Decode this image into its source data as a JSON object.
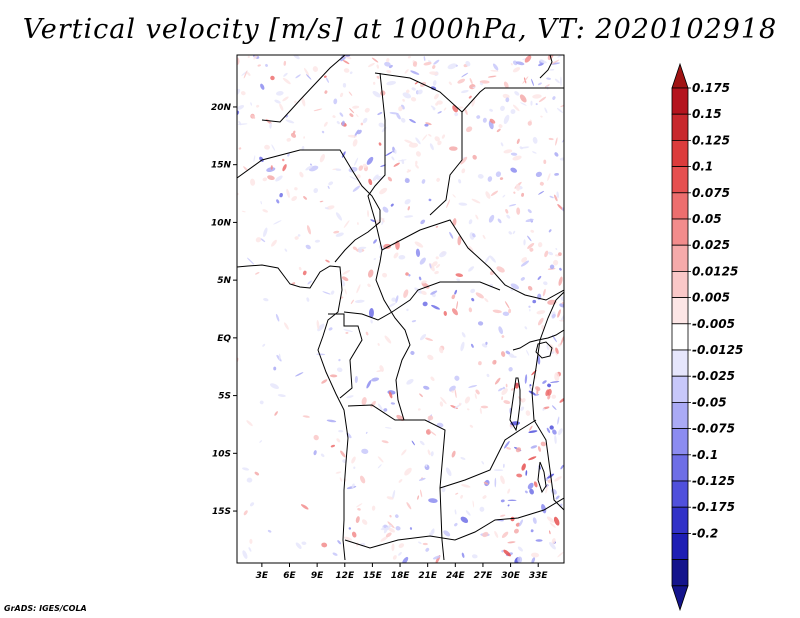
{
  "title": "Vertical velocity [m/s] at 1000hPa, VT: 2020102918",
  "credit": "GrADS: IGES/COLA",
  "map": {
    "lat_range": [
      -19.5,
      24.5
    ],
    "lon_range": [
      0.3,
      35.8
    ],
    "lat_ticks": [
      {
        "lat": 20,
        "label": "20N"
      },
      {
        "lat": 15,
        "label": "15N"
      },
      {
        "lat": 10,
        "label": "10N"
      },
      {
        "lat": 5,
        "label": "5N"
      },
      {
        "lat": 0,
        "label": "EQ"
      },
      {
        "lat": -5,
        "label": "5S"
      },
      {
        "lat": -10,
        "label": "10S"
      },
      {
        "lat": -15,
        "label": "15S"
      }
    ],
    "lon_ticks": [
      {
        "lon": 3,
        "label": "3E"
      },
      {
        "lon": 6,
        "label": "6E"
      },
      {
        "lon": 9,
        "label": "9E"
      },
      {
        "lon": 12,
        "label": "12E"
      },
      {
        "lon": 15,
        "label": "15E"
      },
      {
        "lon": 18,
        "label": "18E"
      },
      {
        "lon": 21,
        "label": "21E"
      },
      {
        "lon": 24,
        "label": "24E"
      },
      {
        "lon": 27,
        "label": "27E"
      },
      {
        "lon": 30,
        "label": "30E"
      },
      {
        "lon": 33,
        "label": "33E"
      }
    ]
  },
  "colorbar": {
    "labels": [
      "0.175",
      "0.15",
      "0.125",
      "0.1",
      "0.075",
      "0.05",
      "0.025",
      "0.0125",
      "0.005",
      "-0.005",
      "-0.0125",
      "-0.025",
      "-0.05",
      "-0.075",
      "-0.1",
      "-0.125",
      "-0.175",
      "-0.2"
    ],
    "colors": [
      "#b4141e",
      "#c8282d",
      "#dc3c3c",
      "#e65050",
      "#ed6e6e",
      "#f28c8c",
      "#f5aaaa",
      "#fac8c8",
      "#fde6e6",
      "#ffffff",
      "#e6e6fc",
      "#c8c8fa",
      "#aaaaf5",
      "#8c8cf0",
      "#6e6ee6",
      "#5050dc",
      "#3232c8",
      "#1e1eb4",
      "#14148c"
    ],
    "top_arrow_color": "#a01414",
    "bottom_arrow_color": "#14148c"
  }
}
